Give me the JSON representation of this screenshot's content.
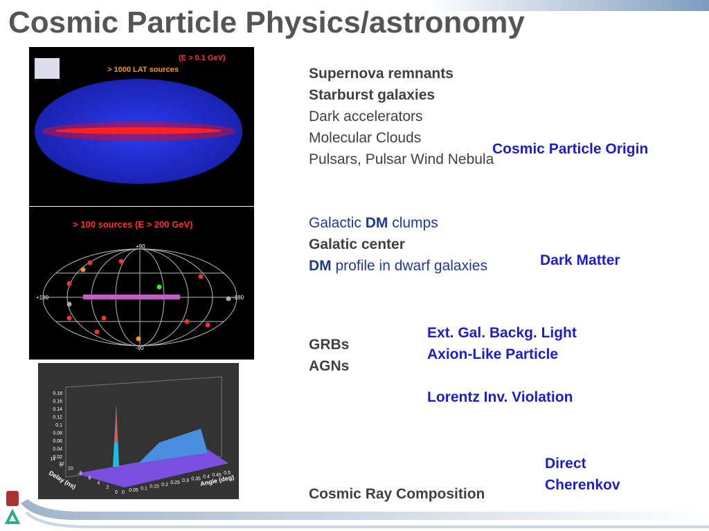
{
  "slide": {
    "title": "Cosmic Particle Physics/astronomy",
    "fermi_map": {
      "energy": "(E > 0.1 GeV)",
      "sources": "> 1000 LAT sources"
    },
    "hess_map": {
      "sources": "> 100 sources (E > 200 GeV)",
      "top": "+90",
      "bottom": "-90",
      "left": "+180",
      "right": "-180"
    },
    "plot": {
      "yticks": [
        "0.18",
        "0.16",
        "0.14",
        "0.12",
        "0.1",
        "0.08",
        "0.06",
        "0.04",
        "0.02",
        "0"
      ],
      "delay_label": "Delay (ns)",
      "delay_ticks": [
        "0",
        "2",
        "4",
        "6",
        "8",
        "10",
        "12",
        "14"
      ],
      "angle_label": "Angle (deg)",
      "angle_ticks": [
        "0",
        "0.05",
        "0.1",
        "0.15",
        "0.2",
        "0.25",
        "0.3",
        "0.35",
        "0.4",
        "0.45",
        "0.5"
      ]
    },
    "origin": {
      "items": [
        "Supernova remnants",
        "Starburst galaxies",
        "Dark accelerators",
        "Molecular Clouds",
        "Pulsars, Pulsar Wind Nebula"
      ],
      "label": "Cosmic Particle Origin"
    },
    "dark_matter": {
      "item1": {
        "before": "Galactic ",
        "strong": "DM",
        "after": " clumps"
      },
      "item2": "Galatic center",
      "item3": {
        "strong": "DM",
        "after": " profile in dwarf galaxies"
      },
      "label": "Dark Matter"
    },
    "extragalactic": {
      "items": [
        "GRBs",
        "AGNs"
      ],
      "labels": [
        "Ext. Gal. Backg. Light",
        "Axion-Like Particle",
        "Lorentz Inv. Violation"
      ]
    },
    "cosmic_rays": {
      "item": "Cosmic Ray Composition",
      "label": [
        "Direct",
        "Cherenkov"
      ]
    }
  }
}
